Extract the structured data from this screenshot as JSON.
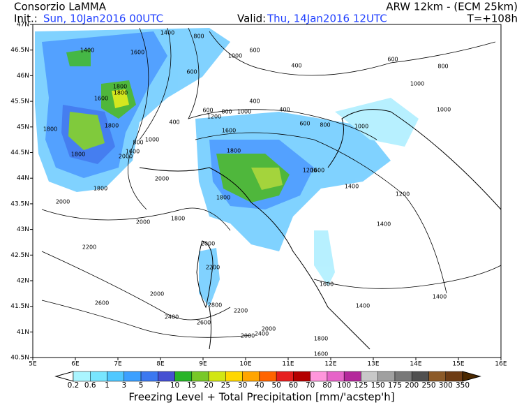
{
  "header": {
    "title": "Consorzio LaMMA",
    "model": "ARW 12km - (ECM 25km)",
    "init_label": "Init.:",
    "init_date": "Sun, 10Jan2016 00UTC",
    "valid_label": "Valid:",
    "valid_date": "Thu, 14Jan2016 12UTC",
    "lead_time": "T=+108h"
  },
  "map": {
    "lat_labels": [
      "47N",
      "46.5N",
      "46N",
      "45.5N",
      "45N",
      "44.5N",
      "44N",
      "43.5N",
      "43N",
      "42.5N",
      "42N",
      "41.5N",
      "41N",
      "40.5N"
    ],
    "lon_labels": [
      "5E",
      "6E",
      "7E",
      "8E",
      "9E",
      "10E",
      "11E",
      "12E",
      "13E",
      "14E",
      "15E",
      "16E"
    ],
    "contour_labels": [
      "1400",
      "800",
      "1400",
      "1600",
      "1000",
      "600",
      "400",
      "600",
      "600",
      "800",
      "1000",
      "1800",
      "1800",
      "1600",
      "400",
      "400",
      "1000",
      "600",
      "800",
      "1000",
      "1200",
      "400",
      "600",
      "800",
      "1800",
      "1800",
      "1000",
      "1600",
      "1000",
      "800",
      "1600",
      "2000",
      "1800",
      "1800",
      "1200",
      "1600",
      "2000",
      "1400",
      "1800",
      "1800",
      "1200",
      "2000",
      "2000",
      "1800",
      "1400",
      "2200",
      "2000",
      "2200",
      "2000",
      "1600",
      "1400",
      "2600",
      "2800",
      "2200",
      "1400",
      "2400",
      "2600",
      "2000",
      "2400",
      "2000",
      "1800",
      "1600"
    ]
  },
  "legend": {
    "labels": [
      "0.2",
      "0.6",
      "1",
      "3",
      "5",
      "7",
      "10",
      "15",
      "20",
      "25",
      "30",
      "40",
      "50",
      "60",
      "70",
      "80",
      "100",
      "125",
      "150",
      "175",
      "200",
      "250",
      "300",
      "350"
    ],
    "caption": "Freezing Level + Total Precipitation [mm/'acstep'h]"
  }
}
